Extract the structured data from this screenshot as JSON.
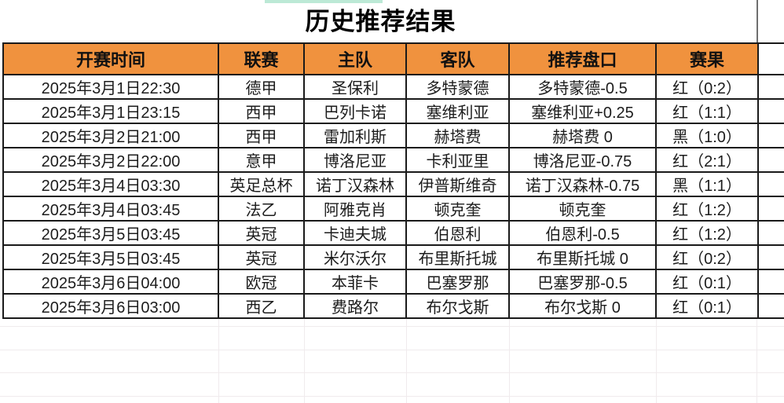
{
  "title": "历史推荐结果",
  "table": {
    "headers": [
      "开赛时间",
      "联赛",
      "主队",
      "客队",
      "推荐盘口",
      "赛果"
    ],
    "rows": [
      {
        "time": "2025年3月1日22:30",
        "league": "德甲",
        "home": "圣保利",
        "away": "多特蒙德",
        "handicap": "多特蒙德-0.5",
        "result": "红（0:2）",
        "result_color": "red"
      },
      {
        "time": "2025年3月1日23:15",
        "league": "西甲",
        "home": "巴列卡诺",
        "away": "塞维利亚",
        "handicap": "塞维利亚+0.25",
        "result": "红（1:1）",
        "result_color": "red"
      },
      {
        "time": "2025年3月2日21:00",
        "league": "西甲",
        "home": "雷加利斯",
        "away": "赫塔费",
        "handicap": "赫塔费 0",
        "result": "黑（1:0）",
        "result_color": "black"
      },
      {
        "time": "2025年3月2日22:00",
        "league": "意甲",
        "home": "博洛尼亚",
        "away": "卡利亚里",
        "handicap": "博洛尼亚-0.75",
        "result": "红（2:1）",
        "result_color": "red"
      },
      {
        "time": "2025年3月4日03:30",
        "league": "英足总杯",
        "home": "诺丁汉森林",
        "away": "伊普斯维奇",
        "handicap": "诺丁汉森林-0.75",
        "result": "黑（1:1）",
        "result_color": "black"
      },
      {
        "time": "2025年3月4日03:45",
        "league": "法乙",
        "home": "阿雅克肖",
        "away": "顿克奎",
        "handicap": "顿克奎",
        "result": "红（1:2）",
        "result_color": "red"
      },
      {
        "time": "2025年3月5日03:45",
        "league": "英冠",
        "home": "卡迪夫城",
        "away": "伯恩利",
        "handicap": "伯恩利-0.5",
        "result": "红（1:2）",
        "result_color": "red"
      },
      {
        "time": "2025年3月5日03:45",
        "league": "英冠",
        "home": "米尔沃尔",
        "away": "布里斯托城",
        "handicap": "布里斯托城 0",
        "result": "红（0:2）",
        "result_color": "red"
      },
      {
        "time": "2025年3月6日04:00",
        "league": "欧冠",
        "home": "本菲卡",
        "away": "巴塞罗那",
        "handicap": "巴塞罗那-0.5",
        "result": "红（0:1）",
        "result_color": "red"
      },
      {
        "time": "2025年3月6日03:00",
        "league": "西乙",
        "home": "费路尔",
        "away": "布尔戈斯",
        "handicap": "布尔戈斯 0",
        "result": "红（0:1）",
        "result_color": "red"
      }
    ]
  },
  "colors": {
    "header_bg": "#F0923E",
    "result_red": "#B33A2E",
    "result_black": "#1F1F1F",
    "border": "#1A1A1A",
    "top_strip": "#BCE9D6",
    "faint_grid": "#F0EBED"
  }
}
